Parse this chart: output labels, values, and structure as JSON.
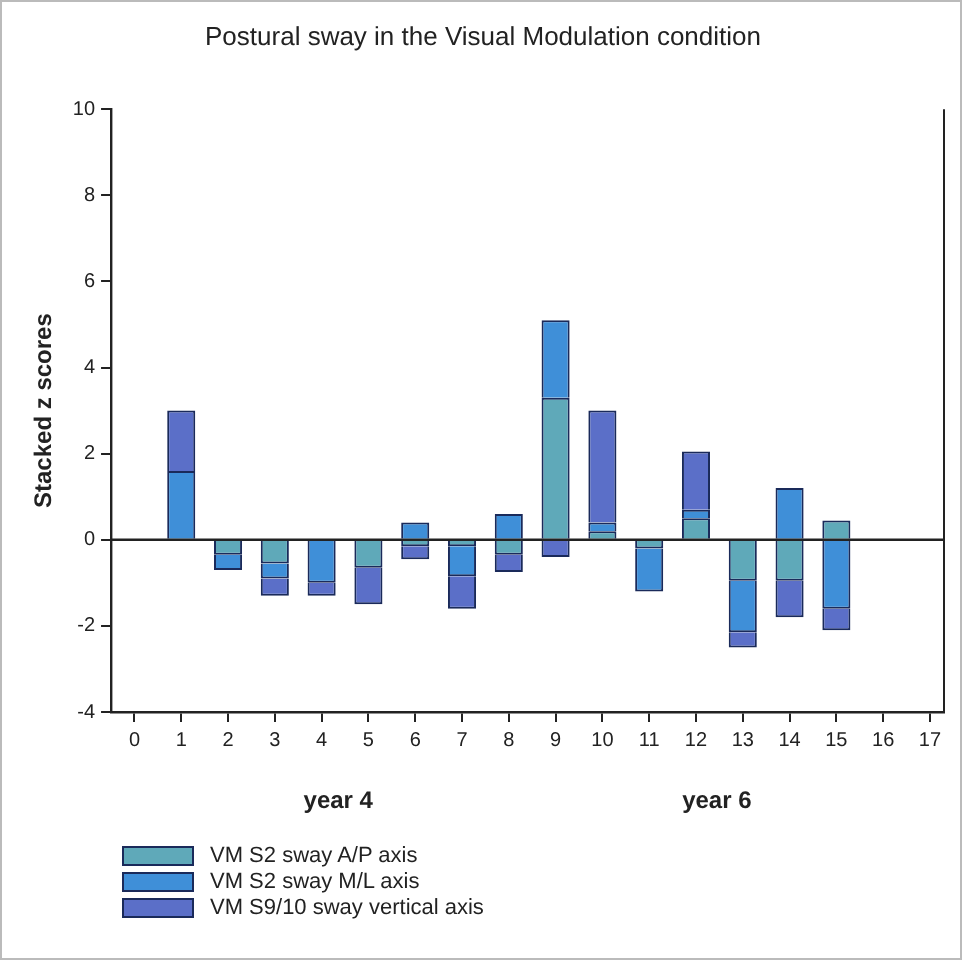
{
  "chart_data": {
    "type": "bar",
    "title": "Postural sway in the Visual Modulation condition",
    "ylabel": "Stacked z scores",
    "annotations": [
      "year 4",
      "year 6"
    ],
    "x": [
      1,
      2,
      3,
      4,
      5,
      6,
      7,
      8,
      9,
      10,
      11,
      12,
      13,
      14,
      15
    ],
    "xlim": [
      -0.5,
      17.3
    ],
    "xticks": [
      0,
      1,
      2,
      3,
      4,
      5,
      6,
      7,
      8,
      9,
      10,
      11,
      12,
      13,
      14,
      15,
      16,
      17
    ],
    "ylim": [
      -4,
      10
    ],
    "yticks": [
      -4,
      -2,
      0,
      2,
      4,
      6,
      8,
      10
    ],
    "stacked": true,
    "grid": false,
    "legend": "bottom left",
    "ref_lines": [
      {
        "axis": "y",
        "value": 0,
        "color": "#222222"
      }
    ],
    "series": [
      {
        "name": "VM S2 sway A/P axis",
        "color": "#5fa9b9",
        "values": [
          0,
          -0.35,
          -0.55,
          0,
          -0.65,
          -0.15,
          -0.15,
          -0.35,
          3.3,
          0.2,
          -0.2,
          0.5,
          -0.95,
          -0.95,
          0.45
        ]
      },
      {
        "name": "VM S2 sway M/L axis",
        "color": "#3f8fd8",
        "values": [
          1.6,
          -0.35,
          -0.35,
          -1.0,
          0,
          0.4,
          -0.7,
          0.6,
          1.8,
          0.2,
          -1.0,
          0.2,
          -1.2,
          1.2,
          -1.6
        ]
      },
      {
        "name": "VM S9/10 sway vertical axis",
        "color": "#5b6fc8",
        "values": [
          1.4,
          0,
          -0.4,
          -0.3,
          -0.85,
          -0.3,
          -0.75,
          -0.4,
          -0.4,
          2.6,
          0,
          1.35,
          -0.35,
          -0.85,
          -0.5
        ]
      }
    ]
  }
}
